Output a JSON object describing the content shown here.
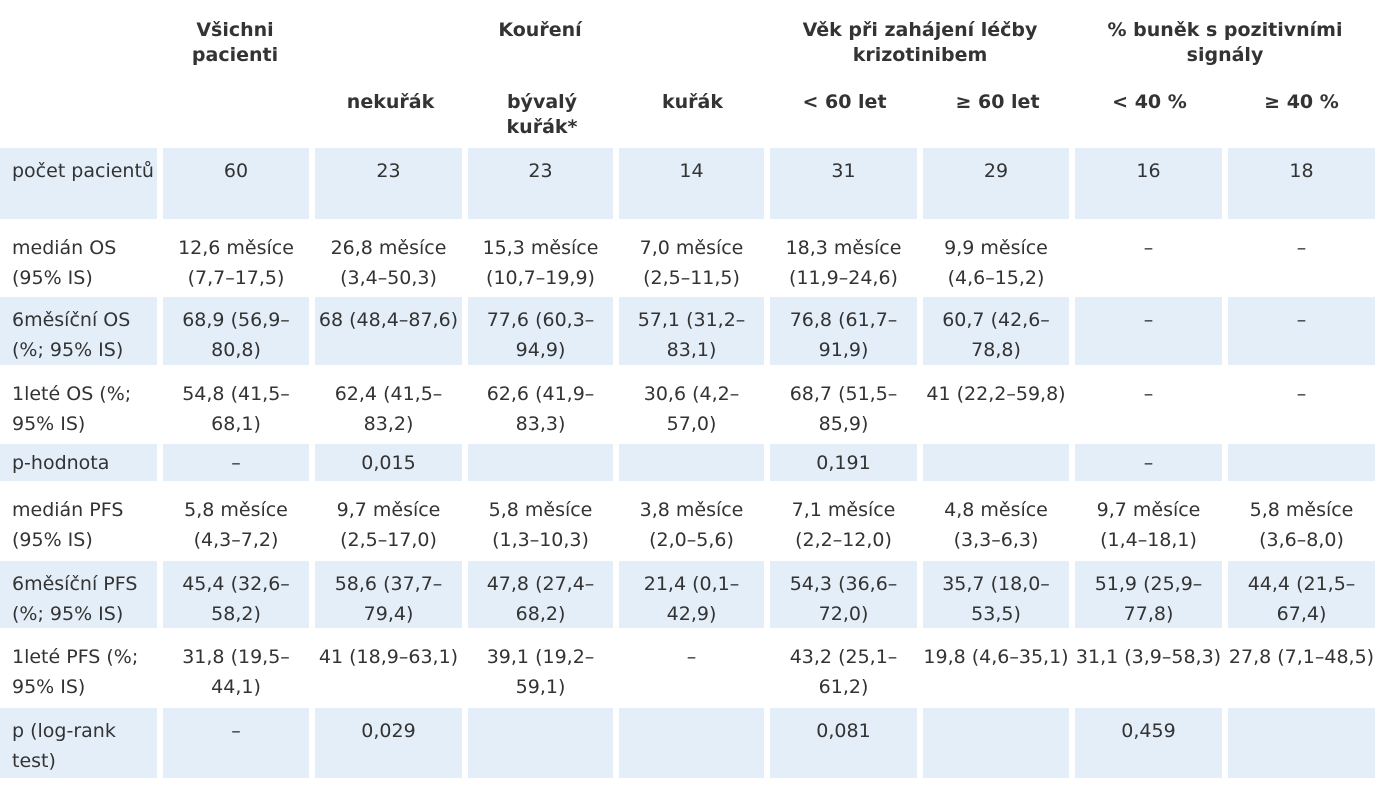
{
  "headers": {
    "all": "Všichni pacienti",
    "smoking": "Kouření",
    "age": "Věk při zahájení léčby krizotinibem",
    "cells": "% buněk s pozitivními signály",
    "sub": [
      "nekuřák",
      "bývalý kuřák*",
      "kuřák",
      "< 60 let",
      "≥ 60 let",
      "< 40 %",
      "≥ 40 %"
    ]
  },
  "rows": [
    {
      "label": "počet pacientů",
      "cells": [
        "60",
        "23",
        "23",
        "14",
        "31",
        "29",
        "16",
        "18"
      ]
    },
    {
      "label": "medián OS (95% IS)",
      "cells": [
        "12,6 měsíce (7,7–17,5)",
        "26,8 měsíce (3,4–50,3)",
        "15,3 měsíce (10,7–19,9)",
        "7,0 měsíce (2,5–11,5)",
        "18,3 měsíce (11,9–24,6)",
        "9,9 měsíce (4,6–15,2)",
        "–",
        "–"
      ]
    },
    {
      "label": "6měsíční OS (%; 95% IS)",
      "cells": [
        "68,9 (56,9–80,8)",
        "68 (48,4–87,6)",
        "77,6 (60,3–94,9)",
        "57,1 (31,2–83,1)",
        "76,8 (61,7–91,9)",
        "60,7 (42,6–78,8)",
        "–",
        "–"
      ]
    },
    {
      "label": "1leté OS (%; 95% IS)",
      "cells": [
        "54,8 (41,5–68,1)",
        "62,4 (41,5–83,2)",
        "62,6 (41,9–83,3)",
        "30,6 (4,2–57,0)",
        "68,7 (51,5–85,9)",
        "41 (22,2–59,8)",
        "–",
        "–"
      ]
    },
    {
      "label": "p-hodnota",
      "cells": [
        "–",
        "0,015",
        "",
        "",
        "0,191",
        "",
        "–",
        ""
      ]
    },
    {
      "label": "medián PFS (95% IS)",
      "cells": [
        "5,8 měsíce (4,3–7,2)",
        "9,7 měsíce (2,5–17,0)",
        "5,8 měsíce (1,3–10,3)",
        "3,8 měsíce (2,0–5,6)",
        "7,1 měsíce (2,2–12,0)",
        "4,8 měsíce (3,3–6,3)",
        "9,7 měsíce (1,4–18,1)",
        "5,8 měsíce (3,6–8,0)"
      ]
    },
    {
      "label": "6měsíční PFS (%; 95% IS)",
      "cells": [
        "45,4 (32,6–58,2)",
        "58,6 (37,7–79,4)",
        "47,8 (27,4–68,2)",
        "21,4 (0,1–42,9)",
        "54,3 (36,6–72,0)",
        "35,7 (18,0–53,5)",
        "51,9 (25,9–77,8)",
        "44,4 (21,5–67,4)"
      ]
    },
    {
      "label": "1leté PFS (%; 95% IS)",
      "cells": [
        "31,8 (19,5–44,1)",
        "41 (18,9–63,1)",
        "39,1 (19,2–59,1)",
        "–",
        "43,2 (25,1–61,2)",
        "19,8 (4,6–35,1)",
        "31,1 (3,9–58,3)",
        "27,8 (7,1–48,5)"
      ]
    },
    {
      "label": "p (log-rank test)",
      "cells": [
        "–",
        "0,029",
        "",
        "",
        "0,081",
        "",
        "0,459",
        ""
      ]
    }
  ]
}
